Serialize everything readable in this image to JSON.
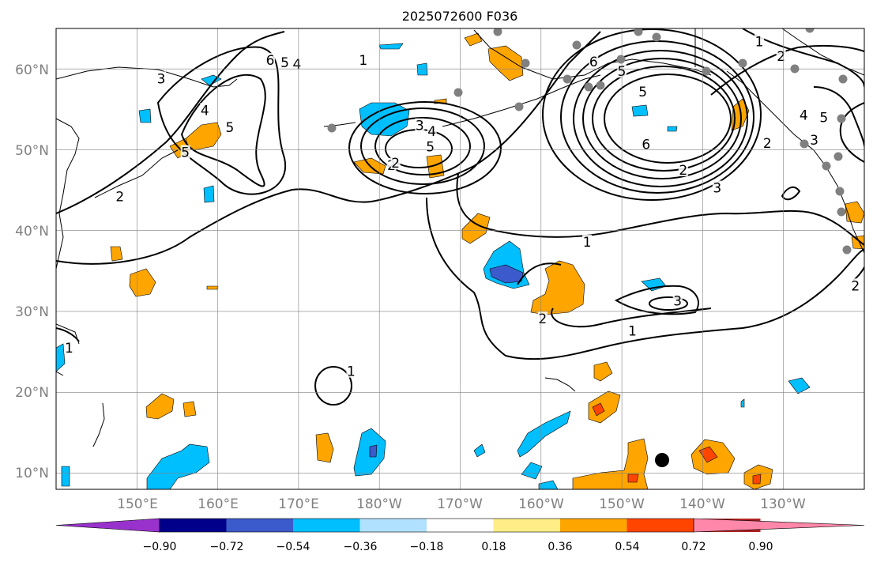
{
  "title": "2025072600 F036",
  "map": {
    "lat_labels": [
      "60°N",
      "50°N",
      "40°N",
      "30°N",
      "20°N",
      "10°N"
    ],
    "lon_labels": [
      "150°E",
      "160°E",
      "170°E",
      "180°W",
      "170°W",
      "160°W",
      "150°W",
      "140°W",
      "130°W"
    ],
    "contour_labels": [
      {
        "text": "6",
        "lon": 166.5,
        "lat": 61.1
      },
      {
        "text": "5",
        "lon": 168.3,
        "lat": 60.8
      },
      {
        "text": "4",
        "lon": 169.8,
        "lat": 60.6
      },
      {
        "text": "1",
        "lon": 178.0,
        "lat": 61.1
      },
      {
        "text": "3",
        "lon": 153.0,
        "lat": 58.8
      },
      {
        "text": "4",
        "lon": 158.4,
        "lat": 54.9
      },
      {
        "text": "5",
        "lon": 161.5,
        "lat": 52.8
      },
      {
        "text": "5",
        "lon": 156.0,
        "lat": 49.7
      },
      {
        "text": "2",
        "lon": 147.9,
        "lat": 44.2
      },
      {
        "text": "3",
        "lon": 185.0,
        "lat": 53.0
      },
      {
        "text": "4",
        "lon": 186.5,
        "lat": 52.3
      },
      {
        "text": "5",
        "lon": 186.3,
        "lat": 50.4
      },
      {
        "text": "2",
        "lon": 181.5,
        "lat": 48.1
      },
      {
        "text": "2",
        "lon": 182.0,
        "lat": 48.4
      },
      {
        "text": "6",
        "lon": 206.5,
        "lat": 60.9
      },
      {
        "text": "5",
        "lon": 210.0,
        "lat": 59.7
      },
      {
        "text": "5",
        "lon": 212.6,
        "lat": 57.2
      },
      {
        "text": "6",
        "lon": 213.0,
        "lat": 50.7
      },
      {
        "text": "2",
        "lon": 217.6,
        "lat": 47.5
      },
      {
        "text": "1",
        "lon": 227.0,
        "lat": 63.4
      },
      {
        "text": "2",
        "lon": 229.7,
        "lat": 61.6
      },
      {
        "text": "4",
        "lon": 232.5,
        "lat": 54.3
      },
      {
        "text": "5",
        "lon": 235.0,
        "lat": 54.0
      },
      {
        "text": "3",
        "lon": 233.8,
        "lat": 51.2
      },
      {
        "text": "2",
        "lon": 228.0,
        "lat": 50.8
      },
      {
        "text": "3",
        "lon": 221.8,
        "lat": 45.3
      },
      {
        "text": "1",
        "lon": 205.7,
        "lat": 38.6
      },
      {
        "text": "3",
        "lon": 216.9,
        "lat": 31.3
      },
      {
        "text": "2",
        "lon": 200.2,
        "lat": 29.1
      },
      {
        "text": "1",
        "lon": 211.3,
        "lat": 27.6
      },
      {
        "text": "2",
        "lon": 238.9,
        "lat": 33.2
      },
      {
        "text": "1",
        "lon": 141.6,
        "lat": 25.5
      },
      {
        "text": "1",
        "lon": 176.5,
        "lat": 22.6
      }
    ],
    "station_dots_color": "#808080",
    "marker_color": "#000000"
  },
  "colorbar": {
    "tick_labels": [
      "−0.90",
      "−0.72",
      "−0.54",
      "−0.36",
      "−0.18",
      "0.18",
      "0.36",
      "0.54",
      "0.72",
      "0.90"
    ],
    "colors": [
      "#9932cc",
      "#00008b",
      "#3b5bcc",
      "#00bfff",
      "#b0e2ff",
      "#ffffff",
      "#ffee88",
      "#ffa500",
      "#ff4500",
      "#b22222",
      "#ff88aa"
    ]
  }
}
